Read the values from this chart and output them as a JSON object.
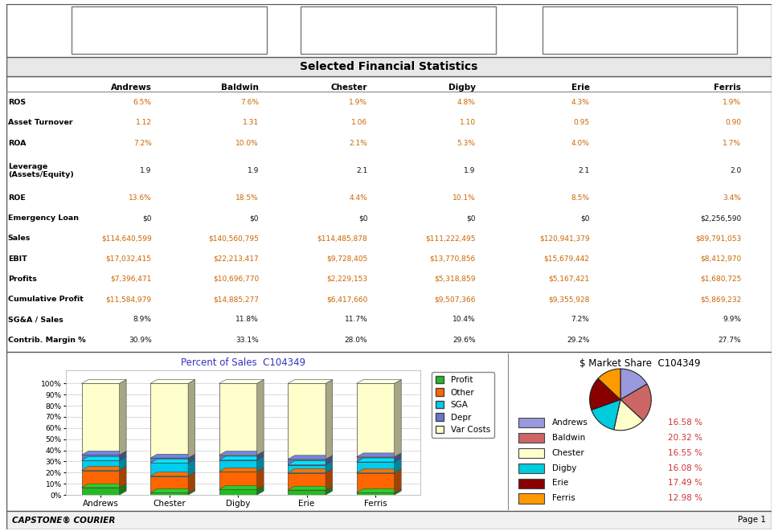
{
  "title": "Selected Financial Statistics",
  "companies": [
    "Andrews",
    "Baldwin",
    "Chester",
    "Digby",
    "Erie",
    "Ferris"
  ],
  "rows": [
    {
      "label": "ROS",
      "values": [
        "6.5%",
        "7.6%",
        "1.9%",
        "4.8%",
        "4.3%",
        "1.9%"
      ],
      "orange": true
    },
    {
      "label": "Asset Turnover",
      "values": [
        "1.12",
        "1.31",
        "1.06",
        "1.10",
        "0.95",
        "0.90"
      ],
      "orange": true
    },
    {
      "label": "ROA",
      "values": [
        "7.2%",
        "10.0%",
        "2.1%",
        "5.3%",
        "4.0%",
        "1.7%"
      ],
      "orange": true
    },
    {
      "label": "Leverage\n(Assets/Equity)",
      "values": [
        "1.9",
        "1.9",
        "2.1",
        "1.9",
        "2.1",
        "2.0"
      ],
      "orange": false
    },
    {
      "label": "ROE",
      "values": [
        "13.6%",
        "18.5%",
        "4.4%",
        "10.1%",
        "8.5%",
        "3.4%"
      ],
      "orange": true
    },
    {
      "label": "Emergency Loan",
      "values": [
        "$0",
        "$0",
        "$0",
        "$0",
        "$0",
        "$2,256,590"
      ],
      "orange": false
    },
    {
      "label": "Sales",
      "values": [
        "$114,640,599",
        "$140,560,795",
        "$114,485,878",
        "$111,222,495",
        "$120,941,379",
        "$89,791,053"
      ],
      "orange": true
    },
    {
      "label": "EBIT",
      "values": [
        "$17,032,415",
        "$22,213,417",
        "$9,728,405",
        "$13,770,856",
        "$15,679,442",
        "$8,412,970"
      ],
      "orange": true
    },
    {
      "label": "Profits",
      "values": [
        "$7,396,471",
        "$10,696,770",
        "$2,229,153",
        "$5,318,859",
        "$5,167,421",
        "$1,680,725"
      ],
      "orange": true
    },
    {
      "label": "Cumulative Profit",
      "values": [
        "$11,584,979",
        "$14,885,277",
        "$6,417,660",
        "$9,507,366",
        "$9,355,928",
        "$5,869,232"
      ],
      "orange": true
    },
    {
      "label": "SG&A / Sales",
      "values": [
        "8.9%",
        "11.8%",
        "11.7%",
        "10.4%",
        "7.2%",
        "9.9%"
      ],
      "orange": false
    },
    {
      "label": "Contrib. Margin %",
      "values": [
        "30.9%",
        "33.1%",
        "28.0%",
        "29.6%",
        "29.2%",
        "27.7%"
      ],
      "orange": false
    }
  ],
  "bar_title": "Percent of Sales  C104349",
  "bar_companies": [
    "Andrews",
    "Chester",
    "Digby",
    "Erie",
    "Ferris"
  ],
  "bar_data": [
    {
      "key": "Profit",
      "color": "#22bb22",
      "values": [
        6.5,
        1.9,
        4.8,
        4.3,
        1.9
      ]
    },
    {
      "key": "Other",
      "color": "#ff6600",
      "values": [
        15.5,
        15.0,
        16.0,
        15.5,
        17.8
      ]
    },
    {
      "key": "SGA",
      "color": "#00ccee",
      "values": [
        8.9,
        11.7,
        10.4,
        7.2,
        9.9
      ]
    },
    {
      "key": "Depr",
      "color": "#6677cc",
      "values": [
        5.0,
        4.5,
        4.5,
        5.0,
        4.5
      ]
    },
    {
      "key": "Var Costs",
      "color": "#ffffcc",
      "values": [
        64.1,
        66.9,
        64.3,
        68.0,
        65.9
      ]
    }
  ],
  "pie_title": "$ Market Share  C104349",
  "pie_data": [
    {
      "label": "Andrews",
      "value": 16.58,
      "color": "#9999dd"
    },
    {
      "label": "Baldwin",
      "value": 20.32,
      "color": "#cc6666"
    },
    {
      "label": "Chester",
      "value": 16.55,
      "color": "#ffffcc"
    },
    {
      "label": "Digby",
      "value": 16.08,
      "color": "#00ccdd"
    },
    {
      "label": "Erie",
      "value": 17.49,
      "color": "#880000"
    },
    {
      "label": "Ferris",
      "value": 12.98,
      "color": "#ff9900"
    }
  ],
  "orange_val_color": "#cc6600",
  "black_val_color": "#111111",
  "pie_pct_color": "#cc3333",
  "footer_left": "CAPSTONE® COURIER",
  "footer_right": "Page 1",
  "bg_gray": "#f0f0f0",
  "border_color": "#555555"
}
